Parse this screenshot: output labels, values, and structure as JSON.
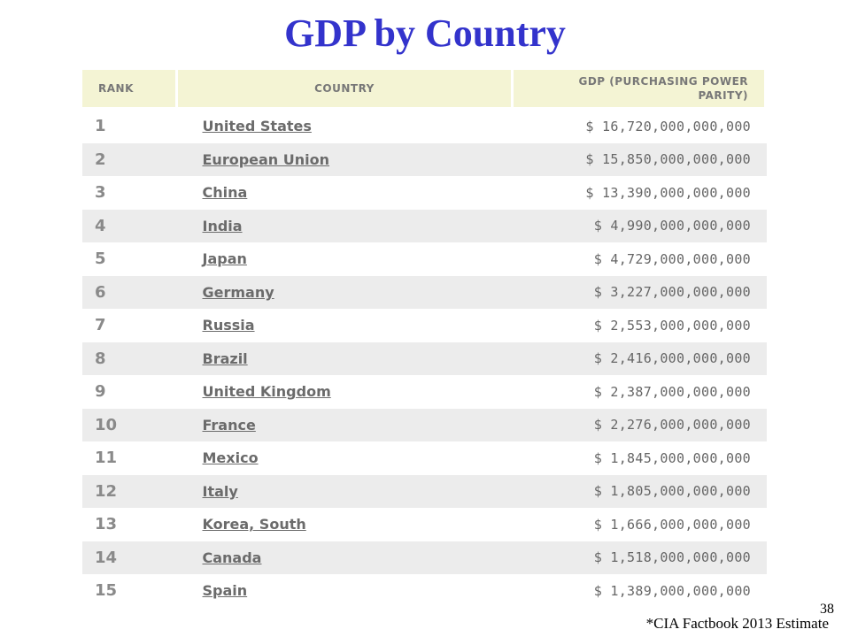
{
  "title": "GDP by Country",
  "table": {
    "headers": {
      "rank": "RANK",
      "country": "COUNTRY",
      "gdp_line1": "GDP (PURCHASING POWER",
      "gdp_line2": "PARITY)"
    },
    "rows": [
      {
        "rank": "1",
        "country": "United States",
        "gdp": "$ 16,720,000,000,000"
      },
      {
        "rank": "2",
        "country": "European Union",
        "gdp": "$ 15,850,000,000,000"
      },
      {
        "rank": "3",
        "country": "China",
        "gdp": "$ 13,390,000,000,000"
      },
      {
        "rank": "4",
        "country": "India",
        "gdp": "$ 4,990,000,000,000"
      },
      {
        "rank": "5",
        "country": "Japan",
        "gdp": "$ 4,729,000,000,000"
      },
      {
        "rank": "6",
        "country": "Germany",
        "gdp": "$ 3,227,000,000,000"
      },
      {
        "rank": "7",
        "country": "Russia",
        "gdp": "$ 2,553,000,000,000"
      },
      {
        "rank": "8",
        "country": "Brazil",
        "gdp": "$ 2,416,000,000,000"
      },
      {
        "rank": "9",
        "country": "United Kingdom",
        "gdp": "$ 2,387,000,000,000"
      },
      {
        "rank": "10",
        "country": "France",
        "gdp": "$ 2,276,000,000,000"
      },
      {
        "rank": "11",
        "country": "Mexico",
        "gdp": "$ 1,845,000,000,000"
      },
      {
        "rank": "12",
        "country": "Italy",
        "gdp": "$ 1,805,000,000,000"
      },
      {
        "rank": "13",
        "country": "Korea, South",
        "gdp": "$ 1,666,000,000,000"
      },
      {
        "rank": "14",
        "country": "Canada",
        "gdp": "$ 1,518,000,000,000"
      },
      {
        "rank": "15",
        "country": "Spain",
        "gdp": "$ 1,389,000,000,000"
      }
    ]
  },
  "footer": {
    "page_number": "38",
    "source_note": "*CIA Factbook 2013 Estimate"
  },
  "colors": {
    "title": "#3333cc",
    "header_background": "#f4f4d4",
    "row_alternate": "#ececec",
    "text_gray": "#6b6b6b"
  }
}
